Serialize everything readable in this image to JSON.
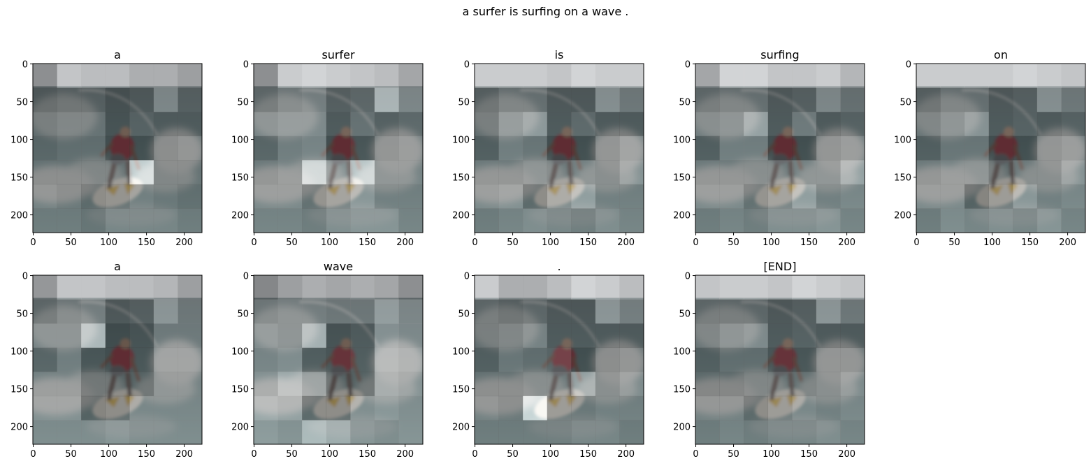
{
  "chart_data": {
    "type": "heatmap",
    "title": "a surfer is surfing on a wave .",
    "xlim": [
      0,
      224
    ],
    "ylim": [
      224,
      0
    ],
    "xticks": [
      0,
      50,
      100,
      150,
      200
    ],
    "yticks": [
      0,
      50,
      100,
      150,
      200
    ],
    "grid": false,
    "colormap": "gray",
    "overlay_on": "surfer photo",
    "panels": [
      {
        "title": "a",
        "attention": [
          [
            0.4,
            0.75,
            0.7,
            0.7,
            0.6,
            0.6,
            0.5
          ],
          [
            0.3,
            0.35,
            0.35,
            0.25,
            0.3,
            0.6,
            0.35
          ],
          [
            0.4,
            0.45,
            0.45,
            0.25,
            0.35,
            0.3,
            0.3
          ],
          [
            0.35,
            0.4,
            0.4,
            0.2,
            0.2,
            0.4,
            0.45
          ],
          [
            0.4,
            0.4,
            0.4,
            0.4,
            1.0,
            0.4,
            0.4
          ],
          [
            0.45,
            0.4,
            0.3,
            0.35,
            0.45,
            0.4,
            0.35
          ],
          [
            0.4,
            0.4,
            0.35,
            0.45,
            0.45,
            0.45,
            0.4
          ]
        ]
      },
      {
        "title": "surfer",
        "attention": [
          [
            0.4,
            0.8,
            0.85,
            0.8,
            0.75,
            0.7,
            0.55
          ],
          [
            0.4,
            0.5,
            0.55,
            0.35,
            0.4,
            0.9,
            0.6
          ],
          [
            0.55,
            0.6,
            0.6,
            0.3,
            0.45,
            0.35,
            0.4
          ],
          [
            0.35,
            0.5,
            0.55,
            0.2,
            0.25,
            0.45,
            0.5
          ],
          [
            0.45,
            0.5,
            0.95,
            0.6,
            0.95,
            0.5,
            0.5
          ],
          [
            0.5,
            0.5,
            0.35,
            0.45,
            0.6,
            0.45,
            0.45
          ],
          [
            0.45,
            0.45,
            0.4,
            0.5,
            0.55,
            0.55,
            0.45
          ]
        ]
      },
      {
        "title": "is",
        "attention": [
          [
            0.8,
            0.8,
            0.8,
            0.75,
            0.85,
            0.8,
            0.8
          ],
          [
            0.35,
            0.45,
            0.45,
            0.3,
            0.3,
            0.65,
            0.5
          ],
          [
            0.4,
            0.6,
            0.7,
            0.3,
            0.4,
            0.3,
            0.3
          ],
          [
            0.3,
            0.5,
            0.45,
            0.2,
            0.2,
            0.45,
            0.55
          ],
          [
            0.45,
            0.45,
            0.5,
            0.45,
            0.5,
            0.45,
            0.6
          ],
          [
            0.5,
            0.55,
            0.3,
            0.5,
            0.65,
            0.45,
            0.45
          ],
          [
            0.4,
            0.45,
            0.5,
            0.45,
            0.4,
            0.5,
            0.45
          ]
        ]
      },
      {
        "title": "surfing",
        "attention": [
          [
            0.55,
            0.85,
            0.85,
            0.75,
            0.75,
            0.8,
            0.65
          ],
          [
            0.4,
            0.45,
            0.45,
            0.3,
            0.35,
            0.6,
            0.45
          ],
          [
            0.5,
            0.55,
            0.75,
            0.3,
            0.5,
            0.3,
            0.35
          ],
          [
            0.3,
            0.5,
            0.5,
            0.2,
            0.2,
            0.45,
            0.5
          ],
          [
            0.45,
            0.45,
            0.45,
            0.45,
            0.5,
            0.5,
            0.7
          ],
          [
            0.5,
            0.5,
            0.35,
            0.45,
            0.65,
            0.45,
            0.5
          ],
          [
            0.4,
            0.45,
            0.4,
            0.5,
            0.5,
            0.55,
            0.45
          ]
        ]
      },
      {
        "title": "on",
        "attention": [
          [
            0.8,
            0.8,
            0.8,
            0.8,
            0.85,
            0.8,
            0.75
          ],
          [
            0.35,
            0.45,
            0.45,
            0.3,
            0.35,
            0.65,
            0.5
          ],
          [
            0.45,
            0.55,
            0.65,
            0.3,
            0.35,
            0.3,
            0.35
          ],
          [
            0.3,
            0.45,
            0.45,
            0.2,
            0.2,
            0.45,
            0.5
          ],
          [
            0.45,
            0.5,
            0.5,
            0.35,
            0.45,
            0.45,
            0.6
          ],
          [
            0.5,
            0.5,
            0.25,
            0.4,
            0.6,
            0.45,
            0.5
          ],
          [
            0.4,
            0.5,
            0.45,
            0.5,
            0.45,
            0.55,
            0.45
          ]
        ]
      },
      {
        "title": "a",
        "attention": [
          [
            0.45,
            0.75,
            0.75,
            0.7,
            0.7,
            0.65,
            0.5
          ],
          [
            0.4,
            0.5,
            0.55,
            0.3,
            0.35,
            0.7,
            0.5
          ],
          [
            0.55,
            0.55,
            0.9,
            0.2,
            0.25,
            0.5,
            0.5
          ],
          [
            0.35,
            0.5,
            0.25,
            0.2,
            0.25,
            0.55,
            0.55
          ],
          [
            0.5,
            0.5,
            0.3,
            0.3,
            0.3,
            0.5,
            0.5
          ],
          [
            0.55,
            0.55,
            0.25,
            0.3,
            0.5,
            0.5,
            0.5
          ],
          [
            0.5,
            0.5,
            0.5,
            0.55,
            0.5,
            0.5,
            0.5
          ]
        ]
      },
      {
        "title": "wave",
        "attention": [
          [
            0.35,
            0.5,
            0.6,
            0.55,
            0.6,
            0.55,
            0.4
          ],
          [
            0.5,
            0.55,
            0.55,
            0.5,
            0.5,
            0.75,
            0.6
          ],
          [
            0.6,
            0.55,
            0.85,
            0.25,
            0.3,
            0.65,
            0.6
          ],
          [
            0.55,
            0.6,
            0.3,
            0.25,
            0.3,
            0.7,
            0.65
          ],
          [
            0.6,
            0.75,
            0.6,
            0.3,
            0.3,
            0.65,
            0.6
          ],
          [
            0.7,
            0.65,
            0.3,
            0.3,
            0.55,
            0.6,
            0.55
          ],
          [
            0.6,
            0.55,
            0.8,
            0.7,
            0.55,
            0.5,
            0.55
          ]
        ]
      },
      {
        "title": ".",
        "attention": [
          [
            0.8,
            0.6,
            0.6,
            0.7,
            0.85,
            0.8,
            0.7
          ],
          [
            0.4,
            0.35,
            0.4,
            0.3,
            0.3,
            0.7,
            0.55
          ],
          [
            0.4,
            0.45,
            0.55,
            0.3,
            0.3,
            0.3,
            0.3
          ],
          [
            0.3,
            0.45,
            0.4,
            0.35,
            0.2,
            0.4,
            0.45
          ],
          [
            0.4,
            0.4,
            0.45,
            0.45,
            0.7,
            0.45,
            0.55
          ],
          [
            0.45,
            0.4,
            1.0,
            0.4,
            0.4,
            0.45,
            0.45
          ],
          [
            0.4,
            0.4,
            0.4,
            0.4,
            0.45,
            0.45,
            0.4
          ]
        ]
      },
      {
        "title": "[END]",
        "attention": [
          [
            0.75,
            0.8,
            0.8,
            0.75,
            0.85,
            0.8,
            0.75
          ],
          [
            0.4,
            0.4,
            0.4,
            0.3,
            0.35,
            0.7,
            0.5
          ],
          [
            0.45,
            0.55,
            0.6,
            0.3,
            0.35,
            0.3,
            0.3
          ],
          [
            0.3,
            0.4,
            0.4,
            0.25,
            0.25,
            0.45,
            0.45
          ],
          [
            0.35,
            0.35,
            0.4,
            0.4,
            0.4,
            0.45,
            0.55
          ],
          [
            0.45,
            0.45,
            0.3,
            0.4,
            0.5,
            0.45,
            0.5
          ],
          [
            0.4,
            0.45,
            0.4,
            0.45,
            0.45,
            0.5,
            0.45
          ]
        ]
      }
    ]
  }
}
